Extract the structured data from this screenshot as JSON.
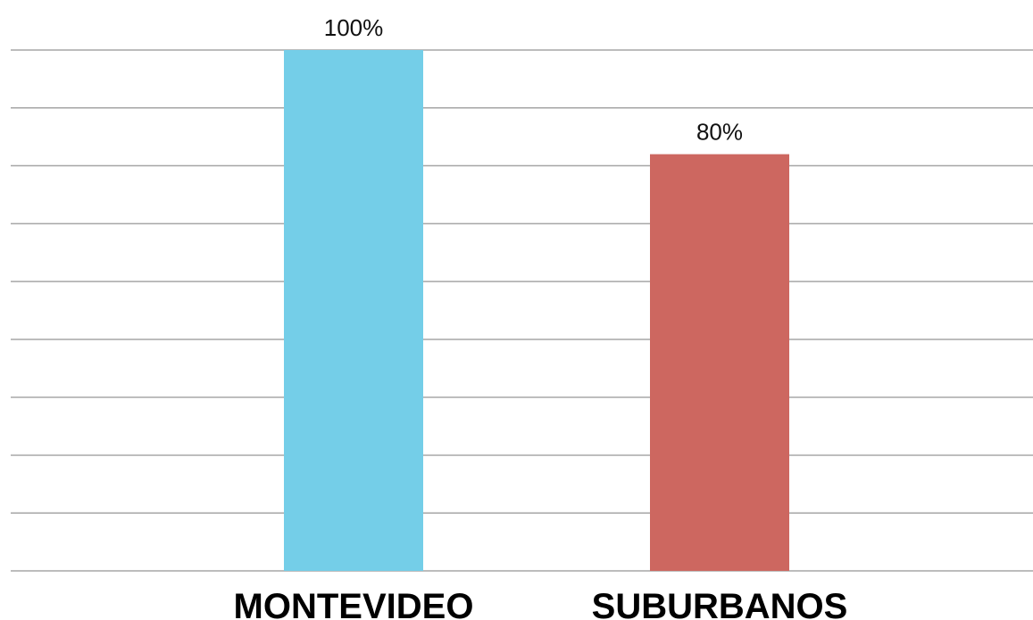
{
  "chart_data": {
    "type": "bar",
    "categories": [
      "MONTEVIDEO",
      "SUBURBANOS"
    ],
    "values": [
      100,
      80
    ],
    "data_labels": [
      "100%",
      "80%"
    ],
    "bar_colors": [
      "#74cee8",
      "#cd6760"
    ],
    "ylim": [
      0,
      100
    ],
    "gridline_count": 10,
    "grid": true,
    "legend": "none",
    "title": "",
    "xlabel": "",
    "ylabel": ""
  }
}
